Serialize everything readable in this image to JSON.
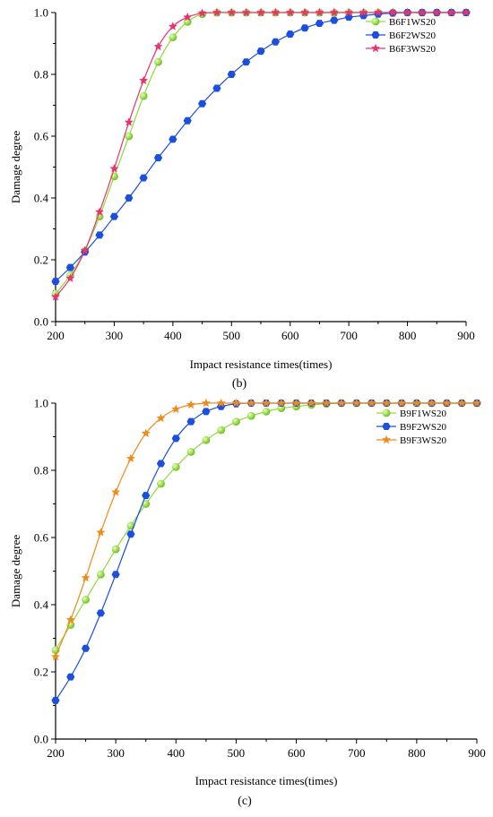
{
  "chart_data": [
    {
      "type": "line",
      "panel_label": "(b)",
      "xlabel": "Impact resistance times(times)",
      "ylabel": "Damage degree",
      "xlim": [
        200,
        900
      ],
      "ylim": [
        0,
        1.0
      ],
      "x_ticks": [
        200,
        300,
        400,
        500,
        600,
        700,
        800,
        900
      ],
      "y_ticks": [
        "0.0",
        "0.2",
        "0.4",
        "0.6",
        "0.8",
        "1.0"
      ],
      "grid": false,
      "legend_position": "top-right",
      "series": [
        {
          "name": "B6F1WS20",
          "color": "#8fd93a",
          "marker": "sphere",
          "x": [
            200,
            225,
            250,
            275,
            300,
            325,
            350,
            375,
            400,
            425,
            450,
            475,
            500,
            525,
            550,
            575,
            600,
            625,
            650,
            675,
            700,
            725,
            750,
            775,
            800,
            825,
            850,
            875,
            900
          ],
          "y": [
            0.09,
            0.15,
            0.23,
            0.34,
            0.47,
            0.6,
            0.73,
            0.84,
            0.92,
            0.97,
            0.995,
            1.0,
            1.0,
            1.0,
            1.0,
            1.0,
            1.0,
            1.0,
            1.0,
            1.0,
            1.0,
            1.0,
            1.0,
            1.0,
            1.0,
            1.0,
            1.0,
            1.0,
            1.0
          ]
        },
        {
          "name": "B6F2WS20",
          "color": "#1a4fe0",
          "marker": "hexagon",
          "x": [
            200,
            225,
            250,
            275,
            300,
            325,
            350,
            375,
            400,
            425,
            450,
            475,
            500,
            525,
            550,
            575,
            600,
            625,
            650,
            675,
            700,
            725,
            750,
            775,
            800,
            825,
            850,
            875,
            900
          ],
          "y": [
            0.13,
            0.175,
            0.225,
            0.28,
            0.34,
            0.4,
            0.465,
            0.53,
            0.59,
            0.65,
            0.705,
            0.755,
            0.8,
            0.84,
            0.875,
            0.905,
            0.93,
            0.95,
            0.965,
            0.975,
            0.985,
            0.99,
            0.995,
            0.998,
            1.0,
            1.0,
            1.0,
            1.0,
            1.0
          ]
        },
        {
          "name": "B6F3WS20",
          "color": "#e8336e",
          "marker": "star",
          "x": [
            200,
            225,
            250,
            275,
            300,
            325,
            350,
            375,
            400,
            425,
            450,
            475,
            500,
            525,
            550,
            575,
            600,
            625,
            650,
            675,
            700,
            725,
            750,
            775,
            800,
            825,
            850,
            875,
            900
          ],
          "y": [
            0.08,
            0.14,
            0.23,
            0.355,
            0.495,
            0.645,
            0.78,
            0.89,
            0.955,
            0.985,
            0.998,
            1.0,
            1.0,
            1.0,
            1.0,
            1.0,
            1.0,
            1.0,
            1.0,
            1.0,
            1.0,
            1.0,
            1.0,
            1.0,
            1.0,
            1.0,
            1.0,
            1.0,
            1.0
          ]
        }
      ]
    },
    {
      "type": "line",
      "panel_label": "(c)",
      "xlabel": "Impact resistance times(times)",
      "ylabel": "Damage degree",
      "xlim": [
        200,
        900
      ],
      "ylim": [
        0,
        1.0
      ],
      "x_ticks": [
        200,
        300,
        400,
        500,
        600,
        700,
        800,
        900
      ],
      "y_ticks": [
        "0.0",
        "0.2",
        "0.4",
        "0.6",
        "0.8",
        "1.0"
      ],
      "grid": false,
      "legend_position": "top-right",
      "series": [
        {
          "name": "B9F1WS20",
          "color": "#8fd93a",
          "marker": "sphere",
          "x": [
            200,
            225,
            250,
            275,
            300,
            325,
            350,
            375,
            400,
            425,
            450,
            475,
            500,
            525,
            550,
            575,
            600,
            625,
            650,
            675,
            700,
            725,
            750,
            775,
            800,
            825,
            850,
            875,
            900
          ],
          "y": [
            0.265,
            0.34,
            0.415,
            0.49,
            0.565,
            0.635,
            0.7,
            0.76,
            0.81,
            0.855,
            0.89,
            0.92,
            0.945,
            0.962,
            0.975,
            0.985,
            0.99,
            0.995,
            0.998,
            1.0,
            1.0,
            1.0,
            1.0,
            1.0,
            1.0,
            1.0,
            1.0,
            1.0,
            1.0
          ]
        },
        {
          "name": "B9F2WS20",
          "color": "#1a4fe0",
          "marker": "hexagon",
          "x": [
            200,
            225,
            250,
            275,
            300,
            325,
            350,
            375,
            400,
            425,
            450,
            475,
            500,
            525,
            550,
            575,
            600,
            625,
            650,
            675,
            700,
            725,
            750,
            775,
            800,
            825,
            850,
            875,
            900
          ],
          "y": [
            0.115,
            0.185,
            0.27,
            0.375,
            0.49,
            0.61,
            0.725,
            0.82,
            0.895,
            0.945,
            0.975,
            0.99,
            0.998,
            1.0,
            1.0,
            1.0,
            1.0,
            1.0,
            1.0,
            1.0,
            1.0,
            1.0,
            1.0,
            1.0,
            1.0,
            1.0,
            1.0,
            1.0,
            1.0
          ]
        },
        {
          "name": "B9F3WS20",
          "color": "#f08a1c",
          "marker": "star",
          "x": [
            200,
            225,
            250,
            275,
            300,
            325,
            350,
            375,
            400,
            425,
            450,
            475,
            500,
            525,
            550,
            575,
            600,
            625,
            650,
            675,
            700,
            725,
            750,
            775,
            800,
            825,
            850,
            875,
            900
          ],
          "y": [
            0.245,
            0.355,
            0.48,
            0.615,
            0.735,
            0.835,
            0.91,
            0.955,
            0.982,
            0.995,
            1.0,
            1.0,
            1.0,
            1.0,
            1.0,
            1.0,
            1.0,
            1.0,
            1.0,
            1.0,
            1.0,
            1.0,
            1.0,
            1.0,
            1.0,
            1.0,
            1.0,
            1.0,
            1.0
          ]
        }
      ]
    }
  ]
}
